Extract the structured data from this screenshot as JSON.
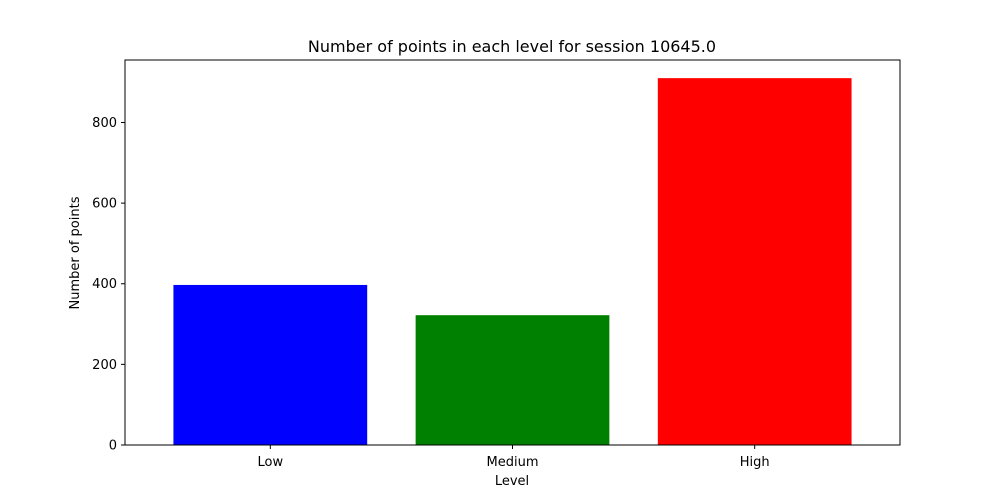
{
  "chart_data": {
    "type": "bar",
    "title": "Number of points in each level for session 10645.0",
    "xlabel": "Level",
    "ylabel": "Number of points",
    "categories": [
      "Low",
      "Medium",
      "High"
    ],
    "values": [
      397,
      322,
      910
    ],
    "colors": [
      "#0000ff",
      "#008000",
      "#ff0000"
    ],
    "ylim": [
      0,
      955
    ],
    "yticks": [
      0,
      200,
      400,
      600,
      800
    ],
    "ytick_labels": [
      "0",
      "200",
      "400",
      "600",
      "800"
    ],
    "grid": false,
    "legend": "none"
  }
}
